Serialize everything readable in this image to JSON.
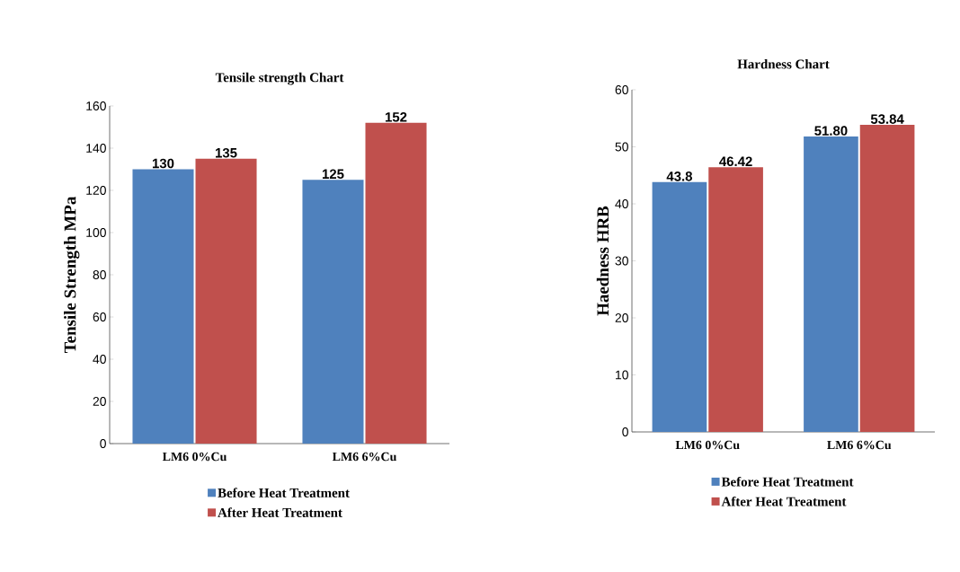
{
  "chart_data": [
    {
      "type": "bar",
      "title": "Tensile strength Chart",
      "ylabel": "Tensile Strength MPa",
      "categories": [
        "LM6 0%Cu",
        "LM6 6%Cu"
      ],
      "series": [
        {
          "name": "Before Heat Treatment",
          "color": "#4f81bd",
          "values": [
            130,
            125
          ]
        },
        {
          "name": "After Heat Treatment",
          "color": "#c0504d",
          "values": [
            135,
            152
          ]
        }
      ],
      "ylim": [
        0,
        160
      ],
      "yticks": [
        0,
        20,
        40,
        60,
        80,
        100,
        120,
        140,
        160
      ],
      "data_labels": true,
      "legend": "bottom"
    },
    {
      "type": "bar",
      "title": "Hardness Chart",
      "ylabel": "Haedness  HRB",
      "categories": [
        "LM6 0%Cu",
        "LM6 6%Cu"
      ],
      "series": [
        {
          "name": "Before Heat Treatment",
          "color": "#4f81bd",
          "values": [
            43.8,
            51.8
          ],
          "value_labels": [
            "43.8",
            "51.80"
          ]
        },
        {
          "name": "After Heat Treatment",
          "color": "#c0504d",
          "values": [
            46.42,
            53.84
          ],
          "value_labels": [
            "46.42",
            "53.84"
          ]
        }
      ],
      "ylim": [
        0,
        60
      ],
      "yticks": [
        0,
        10,
        20,
        30,
        40,
        50,
        60
      ],
      "legend": "bottom"
    }
  ]
}
